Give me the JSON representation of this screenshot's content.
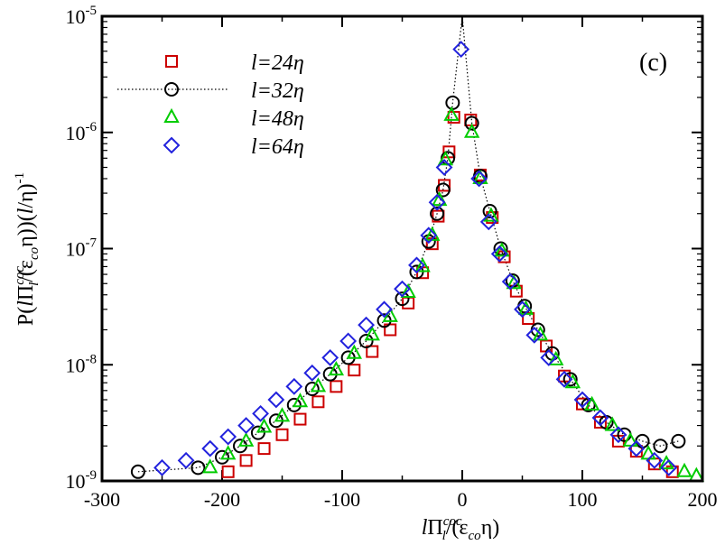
{
  "chart_data": {
    "type": "scatter",
    "panel_label": "(c)",
    "x_axis": {
      "title_parts": [
        "l",
        "Π",
        "coc",
        "l",
        "/(ε",
        "co",
        "η)"
      ],
      "range": [
        -300,
        200
      ],
      "ticks": [
        -300,
        -200,
        -100,
        0,
        100,
        200
      ],
      "tick_labels": [
        "-300",
        "-200",
        "-100",
        "0",
        "100",
        "200"
      ]
    },
    "y_axis": {
      "scale": "log",
      "title_parts": [
        "P(",
        "l",
        "Π",
        "coc",
        "l",
        "/(ε",
        "co",
        "η))(",
        "l",
        "/η)",
        "-1"
      ],
      "range_exp": [
        -9,
        -5
      ],
      "ticks_exp": [
        -9,
        -8,
        -7,
        -6,
        -5
      ],
      "tick_labels": [
        {
          "base": "10",
          "exp": "-9"
        },
        {
          "base": "10",
          "exp": "-8"
        },
        {
          "base": "10",
          "exp": "-7"
        },
        {
          "base": "10",
          "exp": "-6"
        },
        {
          "base": "10",
          "exp": "-5"
        }
      ]
    },
    "legend_position": "top-left",
    "series": [
      {
        "name": "l=24η",
        "label_italic": "l",
        "label_rest": "=24η",
        "marker": "square",
        "color": "#cc0000",
        "points": [
          [
            -195,
            1.2e-09
          ],
          [
            -180,
            1.5e-09
          ],
          [
            -165,
            1.9e-09
          ],
          [
            -150,
            2.5e-09
          ],
          [
            -135,
            3.4e-09
          ],
          [
            -120,
            4.8e-09
          ],
          [
            -105,
            6.5e-09
          ],
          [
            -90,
            9e-09
          ],
          [
            -75,
            1.3e-08
          ],
          [
            -60,
            2e-08
          ],
          [
            -45,
            3.4e-08
          ],
          [
            -33,
            6.2e-08
          ],
          [
            -25,
            1.1e-07
          ],
          [
            -20,
            1.9e-07
          ],
          [
            -15,
            3.5e-07
          ],
          [
            -11,
            6.8e-07
          ],
          [
            -7,
            1.35e-06
          ],
          [
            7,
            1.28e-06
          ],
          [
            15,
            4.3e-07
          ],
          [
            25,
            1.85e-07
          ],
          [
            35,
            8.5e-08
          ],
          [
            45,
            4.3e-08
          ],
          [
            55,
            2.5e-08
          ],
          [
            70,
            1.45e-08
          ],
          [
            85,
            8e-09
          ],
          [
            100,
            4.6e-09
          ],
          [
            115,
            3.2e-09
          ],
          [
            130,
            2.2e-09
          ],
          [
            145,
            1.8e-09
          ],
          [
            160,
            1.4e-09
          ],
          [
            175,
            1.2e-09
          ]
        ]
      },
      {
        "name": "l=32η",
        "label_italic": "l",
        "label_rest": "=32η",
        "marker": "circle",
        "color": "#000000",
        "line": true,
        "points": [
          [
            -270,
            1.2e-09
          ],
          [
            -220,
            1.3e-09
          ],
          [
            -200,
            1.6e-09
          ],
          [
            -185,
            2e-09
          ],
          [
            -170,
            2.6e-09
          ],
          [
            -155,
            3.3e-09
          ],
          [
            -140,
            4.5e-09
          ],
          [
            -125,
            6.2e-09
          ],
          [
            -110,
            8.3e-09
          ],
          [
            -95,
            1.15e-08
          ],
          [
            -80,
            1.6e-08
          ],
          [
            -65,
            2.4e-08
          ],
          [
            -50,
            3.7e-08
          ],
          [
            -38,
            6.3e-08
          ],
          [
            -28,
            1.15e-07
          ],
          [
            -21,
            2e-07
          ],
          [
            -16,
            3.2e-07
          ],
          [
            -12,
            6e-07
          ],
          [
            -8,
            1.8e-06
          ],
          [
            8,
            1.2e-06
          ],
          [
            15,
            4.2e-07
          ],
          [
            23,
            2.1e-07
          ],
          [
            32,
            1e-07
          ],
          [
            42,
            5.3e-08
          ],
          [
            52,
            3.2e-08
          ],
          [
            63,
            2e-08
          ],
          [
            75,
            1.25e-08
          ],
          [
            90,
            7.5e-09
          ],
          [
            105,
            4.5e-09
          ],
          [
            120,
            3.2e-09
          ],
          [
            135,
            2.5e-09
          ],
          [
            150,
            2.2e-09
          ],
          [
            165,
            2e-09
          ],
          [
            180,
            2.2e-09
          ]
        ]
      },
      {
        "name": "l=48η",
        "label_italic": "l",
        "label_rest": "=48η",
        "marker": "triangle",
        "color": "#00cc00",
        "points": [
          [
            -210,
            1.3e-09
          ],
          [
            -195,
            1.7e-09
          ],
          [
            -180,
            2.2e-09
          ],
          [
            -165,
            2.9e-09
          ],
          [
            -150,
            3.6e-09
          ],
          [
            -135,
            4.8e-09
          ],
          [
            -120,
            6.5e-09
          ],
          [
            -105,
            9e-09
          ],
          [
            -90,
            1.25e-08
          ],
          [
            -75,
            1.8e-08
          ],
          [
            -60,
            2.6e-08
          ],
          [
            -45,
            4.2e-08
          ],
          [
            -33,
            7e-08
          ],
          [
            -25,
            1.3e-07
          ],
          [
            -19,
            2.6e-07
          ],
          [
            -14,
            5.8e-07
          ],
          [
            -9,
            1.4e-06
          ],
          [
            8,
            1e-06
          ],
          [
            15,
            4e-07
          ],
          [
            24,
            1.9e-07
          ],
          [
            33,
            9.5e-08
          ],
          [
            43,
            5e-08
          ],
          [
            53,
            3e-08
          ],
          [
            65,
            1.8e-08
          ],
          [
            78,
            1.1e-08
          ],
          [
            92,
            7e-09
          ],
          [
            108,
            4.5e-09
          ],
          [
            125,
            3e-09
          ],
          [
            140,
            2.2e-09
          ],
          [
            155,
            1.7e-09
          ],
          [
            170,
            1.4e-09
          ],
          [
            185,
            1.2e-09
          ],
          [
            195,
            1.1e-09
          ]
        ]
      },
      {
        "name": "l=64η",
        "label_italic": "l",
        "label_rest": "=64η",
        "marker": "diamond",
        "color": "#2222dd",
        "points": [
          [
            -250,
            1.3e-09
          ],
          [
            -230,
            1.5e-09
          ],
          [
            -210,
            1.9e-09
          ],
          [
            -195,
            2.4e-09
          ],
          [
            -180,
            3e-09
          ],
          [
            -168,
            3.8e-09
          ],
          [
            -155,
            5e-09
          ],
          [
            -140,
            6.5e-09
          ],
          [
            -125,
            8.5e-09
          ],
          [
            -110,
            1.15e-08
          ],
          [
            -95,
            1.6e-08
          ],
          [
            -80,
            2.2e-08
          ],
          [
            -65,
            3e-08
          ],
          [
            -50,
            4.5e-08
          ],
          [
            -38,
            7.2e-08
          ],
          [
            -28,
            1.3e-07
          ],
          [
            -21,
            2.5e-07
          ],
          [
            -15,
            5e-07
          ],
          [
            -1,
            5.2e-06
          ],
          [
            14,
            4e-07
          ],
          [
            22,
            1.7e-07
          ],
          [
            31,
            9e-08
          ],
          [
            40,
            5.2e-08
          ],
          [
            50,
            3e-08
          ],
          [
            60,
            1.8e-08
          ],
          [
            72,
            1.15e-08
          ],
          [
            85,
            7.5e-09
          ],
          [
            100,
            5e-09
          ],
          [
            115,
            3.5e-09
          ],
          [
            130,
            2.5e-09
          ],
          [
            145,
            1.9e-09
          ],
          [
            160,
            1.5e-09
          ],
          [
            172,
            1.3e-09
          ]
        ]
      }
    ]
  }
}
